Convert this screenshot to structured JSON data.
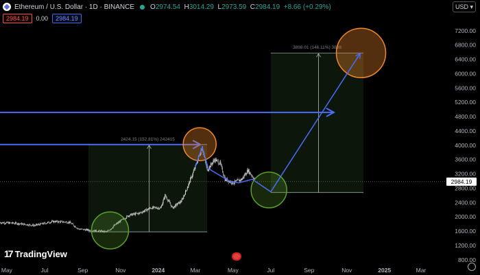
{
  "header": {
    "title": "Ethereum / U.S. Dollar · 1D · BINANCE",
    "ohlc": [
      {
        "k": "O",
        "v": "2974.54"
      },
      {
        "k": "H",
        "v": "3014.29"
      },
      {
        "k": "L",
        "v": "2973.59"
      },
      {
        "k": "C",
        "v": "2984.19"
      }
    ],
    "change": "+8.66 (+0.29%)",
    "sell_price": "2984.19",
    "spread": "0.00",
    "buy_price": "2984.19"
  },
  "currency": "USD",
  "brand": "TradingView",
  "colors": {
    "background": "#000000",
    "up": "#26a69a",
    "down": "#ef5350",
    "candle": "#d8d8d8",
    "arrow": "#4a6cf7",
    "green_circle": "#5aa02c",
    "orange_circle": "#f0882a"
  },
  "chart_data": {
    "type": "candlestick",
    "ylim": [
      700,
      7600
    ],
    "yticks": [
      "7200.00",
      "6800.00",
      "6400.00",
      "6000.00",
      "5600.00",
      "5200.00",
      "4800.00",
      "4400.00",
      "4000.00",
      "3600.00",
      "3200.00",
      "2800.00",
      "2400.00",
      "2000.00",
      "1600.00",
      "1200.00",
      "800.00"
    ],
    "yticks_values": [
      7200,
      6800,
      6400,
      6000,
      5600,
      5200,
      4800,
      4400,
      4000,
      3600,
      3200,
      2800,
      2400,
      2000,
      1600,
      1200,
      800
    ],
    "xticks": [
      {
        "label": "May",
        "x": "2023-05-01",
        "bold": false
      },
      {
        "label": "Jul",
        "x": "2023-07-01",
        "bold": false
      },
      {
        "label": "Sep",
        "x": "2023-09-01",
        "bold": false
      },
      {
        "label": "Nov",
        "x": "2023-11-01",
        "bold": false
      },
      {
        "label": "2024",
        "x": "2024-01-01",
        "bold": true
      },
      {
        "label": "Mar",
        "x": "2024-03-01",
        "bold": false
      },
      {
        "label": "May",
        "x": "2024-05-01",
        "bold": false
      },
      {
        "label": "Jul",
        "x": "2024-07-01",
        "bold": false
      },
      {
        "label": "Sep",
        "x": "2024-09-01",
        "bold": false
      },
      {
        "label": "Nov",
        "x": "2024-11-01",
        "bold": false
      },
      {
        "label": "2025",
        "x": "2025-01-01",
        "bold": true
      },
      {
        "label": "Mar",
        "x": "2025-03-01",
        "bold": false
      }
    ],
    "price_line": {
      "value": 2984.19,
      "label": "2984.19"
    },
    "price_path": [
      [
        "2023-04-20",
        1840
      ],
      [
        "2023-05-15",
        1820
      ],
      [
        "2023-06-15",
        1760
      ],
      [
        "2023-07-15",
        1870
      ],
      [
        "2023-08-10",
        1850
      ],
      [
        "2023-08-25",
        1660
      ],
      [
        "2023-09-15",
        1620
      ],
      [
        "2023-10-10",
        1580
      ],
      [
        "2023-10-25",
        1800
      ],
      [
        "2023-11-15",
        2050
      ],
      [
        "2023-12-01",
        2100
      ],
      [
        "2023-12-20",
        2250
      ],
      [
        "2024-01-05",
        2250
      ],
      [
        "2024-01-12",
        2600
      ],
      [
        "2024-01-24",
        2250
      ],
      [
        "2024-02-08",
        2450
      ],
      [
        "2024-02-20",
        2950
      ],
      [
        "2024-03-01",
        3400
      ],
      [
        "2024-03-12",
        3950
      ],
      [
        "2024-03-20",
        3300
      ],
      [
        "2024-04-01",
        3600
      ],
      [
        "2024-04-10",
        3500
      ],
      [
        "2024-04-18",
        3050
      ],
      [
        "2024-05-01",
        2950
      ],
      [
        "2024-05-15",
        3050
      ],
      [
        "2024-05-25",
        3300
      ],
      [
        "2024-06-05",
        3050
      ]
    ],
    "projection": [
      [
        "2024-03-01",
        3400
      ],
      [
        "2024-03-12",
        3950
      ],
      [
        "2024-03-22",
        3350
      ],
      [
        "2024-04-25",
        3000
      ],
      [
        "2024-05-10",
        2950
      ],
      [
        "2024-06-01",
        3050
      ],
      [
        "2024-07-01",
        2700
      ],
      [
        "2024-11-22",
        6550
      ]
    ],
    "horizontal_arrows": [
      {
        "y": 4920,
        "x_start": "2023-04-20",
        "x_end": "2024-10-10"
      },
      {
        "y": 4020,
        "x_start": "2023-04-20",
        "x_end": "2024-03-08"
      }
    ],
    "ranges": [
      {
        "x_start": "2023-09-10",
        "x_end": "2024-03-20",
        "y_low": 1580,
        "y_high": 4020,
        "label": "2424.15 (152.81%) 242415"
      },
      {
        "x_start": "2024-07-01",
        "x_end": "2024-11-28",
        "y_low": 2680,
        "y_high": 6580,
        "label": "3898.01 (146.11%) 3898"
      }
    ],
    "circles": [
      {
        "x": "2023-10-15",
        "y": 1620,
        "r": 27,
        "color": "green"
      },
      {
        "x": "2024-03-08",
        "y": 4030,
        "r": 24,
        "color": "orange"
      },
      {
        "x": "2024-06-28",
        "y": 2750,
        "r": 26,
        "color": "green"
      },
      {
        "x": "2024-11-24",
        "y": 6580,
        "r": 36,
        "color": "orange"
      }
    ]
  }
}
